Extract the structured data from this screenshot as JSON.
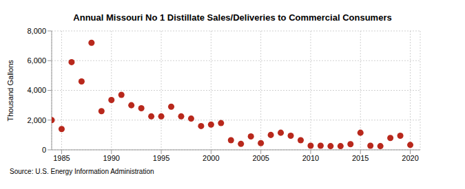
{
  "chart_data": {
    "type": "scatter",
    "title": "Annual Missouri No 1 Distillate Sales/Deliveries to Commercial Consumers",
    "y_label": "Thousand Gallons",
    "source": "Source: U.S. Energy Information Administration",
    "x": [
      1984,
      1985,
      1986,
      1987,
      1988,
      1989,
      1990,
      1991,
      1992,
      1993,
      1994,
      1995,
      1996,
      1997,
      1998,
      1999,
      2000,
      2001,
      2002,
      2003,
      2004,
      2005,
      2006,
      2007,
      2008,
      2009,
      2010,
      2011,
      2012,
      2013,
      2014,
      2015,
      2016,
      2017,
      2018,
      2019,
      2020
    ],
    "values": [
      2000,
      1400,
      5900,
      4600,
      7200,
      2600,
      3350,
      3700,
      3000,
      2800,
      2250,
      2250,
      2900,
      2250,
      2100,
      1600,
      1700,
      1800,
      650,
      400,
      900,
      450,
      1000,
      1150,
      950,
      650,
      280,
      280,
      250,
      250,
      380,
      1150,
      280,
      250,
      800,
      950,
      330
    ],
    "color": "#b8281c",
    "marker": "circle",
    "xlim": [
      1984,
      2021
    ],
    "xticks": [
      1985,
      1990,
      1995,
      2000,
      2005,
      2010,
      2015,
      2020
    ],
    "ylim": [
      0,
      8000
    ],
    "yticks": [
      0,
      {
        "value": 2000,
        "label": "2,000"
      },
      {
        "value": 4000,
        "label": "4,000"
      },
      {
        "value": 6000,
        "label": "6,000"
      },
      {
        "value": 8000,
        "label": "8,000"
      }
    ],
    "grid": true
  }
}
